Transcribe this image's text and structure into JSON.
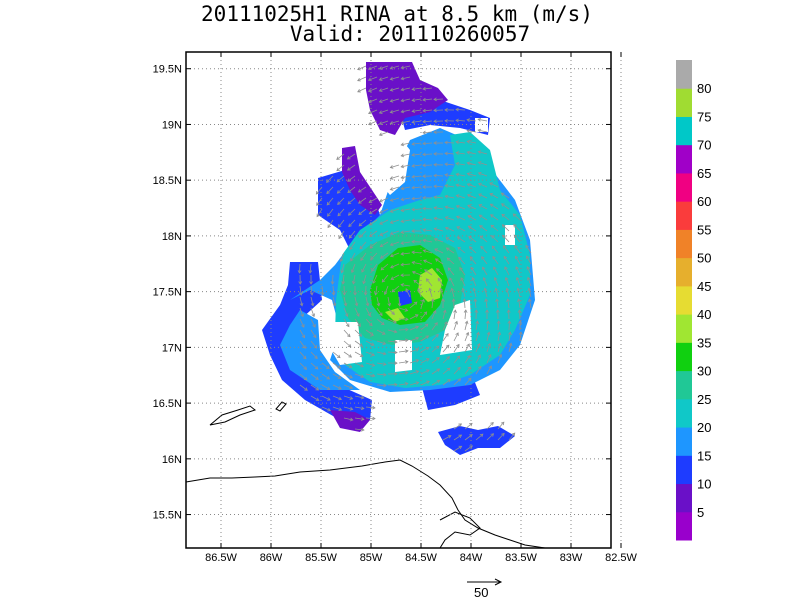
{
  "title": {
    "line1": "20111025H1 RINA at 8.5 km (m/s)",
    "line2": "Valid: 201110260057"
  },
  "map": {
    "lon_ticks": [
      "86.5W",
      "86W",
      "85.5W",
      "85W",
      "84.5W",
      "84W",
      "83.5W",
      "83W",
      "82.5W"
    ],
    "lat_ticks": [
      "19.5N",
      "19N",
      "18.5N",
      "18N",
      "17.5N",
      "17N",
      "16.5N",
      "16N",
      "15.5N"
    ],
    "lon_range": [
      -86.85,
      -82.6
    ],
    "lat_range": [
      15.2,
      19.65
    ],
    "grid": "dotted"
  },
  "colorbar": {
    "labels": [
      "5",
      "10",
      "15",
      "20",
      "25",
      "30",
      "35",
      "40",
      "45",
      "50",
      "55",
      "60",
      "65",
      "70",
      "75",
      "80"
    ],
    "colors": [
      "#9900cc",
      "#6a10c8",
      "#1e3cff",
      "#1e96ff",
      "#10c8c8",
      "#20c896",
      "#10d010",
      "#a0e632",
      "#e6dc32",
      "#e6af2d",
      "#f08228",
      "#fa3c3c",
      "#f00082",
      "#a000c8",
      "#00c8c8",
      "#a0dc32",
      "#aaaaaa"
    ]
  },
  "vector_key": {
    "label": "50"
  },
  "colors": {
    "vector": "#909090",
    "coast": "#000000"
  }
}
